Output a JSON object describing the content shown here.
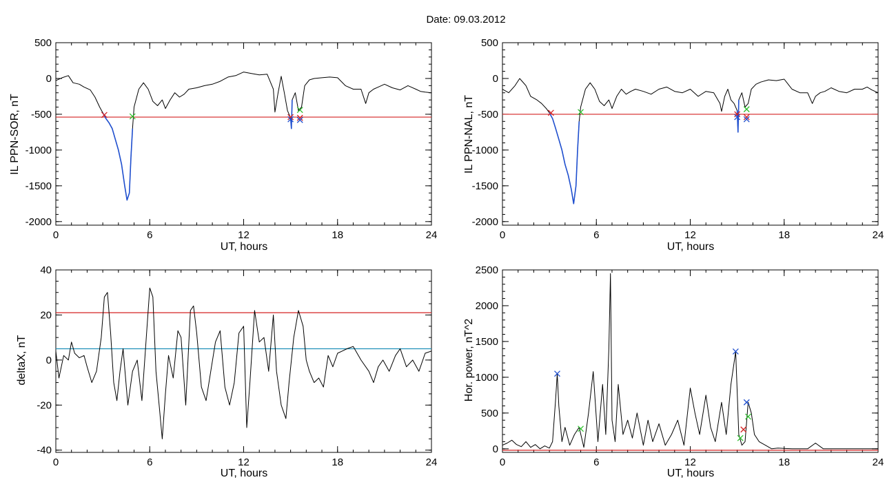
{
  "figure": {
    "title": "Date:  09.03.2012"
  },
  "chart_data": [
    {
      "id": "il_sor",
      "type": "line",
      "xlabel": "UT, hours",
      "ylabel": "IL PPN-SOR, nT",
      "xlim": [
        0,
        24
      ],
      "ylim": [
        -2050,
        500
      ],
      "xticks": [
        0,
        6,
        12,
        18,
        24
      ],
      "yticks": [
        500,
        0,
        -500,
        -1000,
        -1500,
        -2000
      ],
      "x_minor": 1,
      "y_minor": 100,
      "series": [
        {
          "color": "#000000",
          "x": [
            0,
            0.4,
            0.8,
            1.1,
            1.5,
            1.8,
            2.2,
            2.5,
            2.8,
            3.0,
            3.2,
            3.4,
            3.6,
            3.8,
            4.0,
            4.2,
            4.4,
            4.55,
            4.7,
            4.8,
            4.9,
            5.0,
            5.3,
            5.6,
            5.9,
            6.2,
            6.5,
            6.8,
            7.0,
            7.3,
            7.6,
            7.9,
            8.2,
            8.5,
            9.0,
            9.5,
            10.0,
            10.5,
            11.0,
            11.5,
            12.0,
            12.5,
            13.0,
            13.5,
            13.9,
            14.0,
            14.2,
            14.4,
            14.6,
            14.8,
            15.0,
            15.05,
            15.1,
            15.3,
            15.5,
            15.7,
            15.9,
            16.2,
            16.5,
            17.0,
            17.5,
            18.0,
            18.5,
            19.0,
            19.5,
            19.8,
            20.0,
            20.3,
            20.6,
            21.0,
            21.5,
            22.0,
            22.5,
            23.0,
            23.3,
            23.6,
            24.0
          ],
          "values": [
            -30,
            10,
            40,
            -60,
            -80,
            -120,
            -160,
            -260,
            -400,
            -480,
            -560,
            -620,
            -700,
            -850,
            -1000,
            -1200,
            -1500,
            -1700,
            -1600,
            -1100,
            -700,
            -400,
            -150,
            -60,
            -150,
            -320,
            -380,
            -300,
            -420,
            -300,
            -200,
            -260,
            -220,
            -150,
            -130,
            -100,
            -80,
            -40,
            20,
            40,
            90,
            70,
            50,
            60,
            -150,
            -470,
            -200,
            30,
            -200,
            -450,
            -550,
            -700,
            -300,
            -200,
            -450,
            -400,
            -100,
            -20,
            0,
            10,
            20,
            10,
            -100,
            -150,
            -150,
            -350,
            -200,
            -150,
            -120,
            -80,
            -130,
            -160,
            -100,
            -150,
            -180,
            -190,
            -200
          ]
        },
        {
          "color": "#1f4fcf",
          "x": [
            3.0,
            3.2,
            3.4,
            3.6,
            3.8,
            4.0,
            4.2,
            4.4,
            4.55,
            4.7,
            4.8,
            4.9
          ],
          "values": [
            -480,
            -560,
            -620,
            -700,
            -850,
            -1000,
            -1200,
            -1500,
            -1700,
            -1600,
            -1100,
            -700
          ]
        },
        {
          "color": "#1f4fcf",
          "x": [
            15.0,
            15.05,
            15.1
          ],
          "values": [
            -550,
            -700,
            -300
          ]
        }
      ],
      "hlines": [
        {
          "y": -540,
          "color": "#d42020"
        }
      ],
      "markers": [
        {
          "x": 3.1,
          "y": -510,
          "color": "#d42020"
        },
        {
          "x": 4.9,
          "y": -530,
          "color": "#2cc02c"
        },
        {
          "x": 15.0,
          "y": -540,
          "color": "#d42020"
        },
        {
          "x": 15.0,
          "y": -570,
          "color": "#1f4fcf"
        },
        {
          "x": 15.6,
          "y": -440,
          "color": "#2cc02c"
        },
        {
          "x": 15.6,
          "y": -550,
          "color": "#d42020"
        },
        {
          "x": 15.6,
          "y": -580,
          "color": "#1f4fcf"
        }
      ]
    },
    {
      "id": "il_nal",
      "type": "line",
      "xlabel": "UT, hours",
      "ylabel": "IL PPN-NAL, nT",
      "xlim": [
        0,
        24
      ],
      "ylim": [
        -2050,
        500
      ],
      "xticks": [
        0,
        6,
        12,
        18,
        24
      ],
      "yticks": [
        500,
        0,
        -500,
        -1000,
        -1500,
        -2000
      ],
      "x_minor": 1,
      "y_minor": 100,
      "series": [
        {
          "color": "#000000",
          "x": [
            0,
            0.4,
            0.8,
            1.1,
            1.5,
            1.8,
            2.2,
            2.5,
            2.8,
            3.0,
            3.2,
            3.4,
            3.6,
            3.8,
            4.0,
            4.2,
            4.4,
            4.55,
            4.7,
            4.8,
            4.9,
            5.0,
            5.3,
            5.6,
            5.9,
            6.2,
            6.5,
            6.8,
            7.0,
            7.3,
            7.6,
            7.9,
            8.2,
            8.5,
            9.0,
            9.5,
            10.0,
            10.5,
            11.0,
            11.5,
            12.0,
            12.5,
            13.0,
            13.5,
            13.9,
            14.0,
            14.2,
            14.4,
            14.6,
            14.8,
            15.0,
            15.05,
            15.1,
            15.3,
            15.5,
            15.7,
            15.9,
            16.2,
            16.5,
            17.0,
            17.5,
            18.0,
            18.5,
            19.0,
            19.5,
            19.8,
            20.0,
            20.3,
            20.6,
            21.0,
            21.5,
            22.0,
            22.5,
            23.0,
            23.3,
            23.6,
            24.0
          ],
          "values": [
            -150,
            -200,
            -100,
            0,
            -100,
            -250,
            -300,
            -350,
            -420,
            -480,
            -560,
            -700,
            -850,
            -1000,
            -1200,
            -1350,
            -1550,
            -1750,
            -1500,
            -1000,
            -600,
            -400,
            -150,
            -60,
            -150,
            -320,
            -380,
            -300,
            -420,
            -250,
            -150,
            -220,
            -180,
            -150,
            -180,
            -220,
            -150,
            -120,
            -180,
            -200,
            -150,
            -250,
            -180,
            -200,
            -350,
            -460,
            -250,
            -150,
            -300,
            -350,
            -450,
            -750,
            -300,
            -200,
            -400,
            -350,
            -150,
            -80,
            -50,
            -20,
            -30,
            -10,
            -150,
            -200,
            -200,
            -350,
            -250,
            -200,
            -180,
            -130,
            -180,
            -200,
            -150,
            -150,
            -120,
            -160,
            -200
          ]
        },
        {
          "color": "#1f4fcf",
          "x": [
            3.0,
            3.2,
            3.4,
            3.6,
            3.8,
            4.0,
            4.2,
            4.4,
            4.55,
            4.7,
            4.8,
            4.9
          ],
          "values": [
            -480,
            -560,
            -700,
            -850,
            -1000,
            -1200,
            -1350,
            -1550,
            -1750,
            -1500,
            -1000,
            -600
          ]
        },
        {
          "color": "#1f4fcf",
          "x": [
            15.0,
            15.05,
            15.1
          ],
          "values": [
            -450,
            -750,
            -300
          ]
        }
      ],
      "hlines": [
        {
          "y": -500,
          "color": "#d42020"
        }
      ],
      "markers": [
        {
          "x": 3.1,
          "y": -480,
          "color": "#d42020"
        },
        {
          "x": 5.0,
          "y": -470,
          "color": "#2cc02c"
        },
        {
          "x": 15.0,
          "y": -500,
          "color": "#d42020"
        },
        {
          "x": 15.0,
          "y": -540,
          "color": "#1f4fcf"
        },
        {
          "x": 15.6,
          "y": -430,
          "color": "#2cc02c"
        },
        {
          "x": 15.6,
          "y": -540,
          "color": "#d42020"
        },
        {
          "x": 15.6,
          "y": -570,
          "color": "#1f4fcf"
        }
      ]
    },
    {
      "id": "deltax",
      "type": "line",
      "xlabel": "UT, hours",
      "ylabel": "deltaX, nT",
      "xlim": [
        0,
        24
      ],
      "ylim": [
        -41,
        40
      ],
      "xticks": [
        0,
        6,
        12,
        18,
        24
      ],
      "yticks": [
        40,
        20,
        0,
        -20,
        -40
      ],
      "x_minor": 1,
      "y_minor": 5,
      "series": [
        {
          "color": "#000000",
          "x": [
            0,
            0.2,
            0.5,
            0.8,
            1.0,
            1.2,
            1.5,
            1.8,
            2.0,
            2.3,
            2.6,
            2.9,
            3.1,
            3.3,
            3.5,
            3.7,
            3.9,
            4.1,
            4.3,
            4.6,
            4.9,
            5.2,
            5.5,
            5.8,
            6.0,
            6.2,
            6.4,
            6.6,
            6.8,
            7.0,
            7.2,
            7.5,
            7.8,
            8.0,
            8.3,
            8.6,
            8.8,
            9.0,
            9.3,
            9.6,
            9.9,
            10.2,
            10.5,
            10.8,
            11.1,
            11.4,
            11.7,
            12.0,
            12.2,
            12.4,
            12.7,
            13.0,
            13.3,
            13.6,
            13.9,
            14.1,
            14.4,
            14.7,
            14.9,
            15.2,
            15.5,
            15.8,
            16.0,
            16.2,
            16.5,
            16.8,
            17.1,
            17.4,
            17.7,
            18.0,
            18.3,
            18.6,
            19.0,
            19.5,
            20.0,
            20.3,
            20.6,
            20.9,
            21.3,
            21.7,
            22.0,
            22.4,
            22.8,
            23.2,
            23.6,
            24.0
          ],
          "values": [
            4,
            -8,
            2,
            0,
            8,
            3,
            1,
            2,
            -3,
            -10,
            -5,
            10,
            28,
            30,
            12,
            -10,
            -18,
            -5,
            5,
            -20,
            -5,
            0,
            -18,
            12,
            32,
            28,
            -5,
            -20,
            -35,
            -15,
            2,
            -8,
            13,
            10,
            -20,
            22,
            24,
            12,
            -12,
            -18,
            -5,
            8,
            13,
            -12,
            -20,
            -10,
            12,
            15,
            -30,
            -10,
            22,
            8,
            10,
            -5,
            20,
            -5,
            -20,
            -26,
            -10,
            10,
            22,
            15,
            0,
            -5,
            -10,
            -8,
            -12,
            2,
            -3,
            3,
            4,
            5,
            6,
            0,
            -5,
            -10,
            -3,
            0,
            -5,
            2,
            5,
            -3,
            0,
            -5,
            3,
            4
          ]
        }
      ],
      "hlines": [
        {
          "y": 21,
          "color": "#d42020"
        },
        {
          "y": 5,
          "color": "#1f8fb8"
        }
      ],
      "markers": []
    },
    {
      "id": "hor_power",
      "type": "line",
      "xlabel": "UT, hours",
      "ylabel": "Hor. power, nT^2",
      "xlim": [
        0,
        24
      ],
      "ylim": [
        -50,
        2500
      ],
      "xticks": [
        0,
        6,
        12,
        18,
        24
      ],
      "yticks": [
        2500,
        2000,
        1500,
        1000,
        500,
        0
      ],
      "x_minor": 1,
      "y_minor": 100,
      "series": [
        {
          "color": "#000000",
          "x": [
            0,
            0.3,
            0.6,
            0.9,
            1.2,
            1.5,
            1.8,
            2.1,
            2.4,
            2.7,
            3.0,
            3.2,
            3.4,
            3.5,
            3.6,
            3.8,
            4.0,
            4.3,
            4.6,
            4.9,
            5.2,
            5.5,
            5.8,
            6.1,
            6.4,
            6.6,
            6.8,
            6.9,
            7.0,
            7.2,
            7.4,
            7.7,
            8.0,
            8.3,
            8.6,
            9.0,
            9.3,
            9.6,
            10.0,
            10.4,
            10.8,
            11.2,
            11.6,
            12.0,
            12.3,
            12.6,
            13.0,
            13.3,
            13.6,
            14.0,
            14.3,
            14.6,
            14.9,
            15.1,
            15.3,
            15.5,
            15.7,
            15.9,
            16.1,
            16.4,
            16.8,
            17.2,
            17.6,
            18.0,
            18.5,
            19.0,
            19.5,
            20.0,
            20.5,
            21.0,
            21.5,
            22.0,
            22.5,
            23.0,
            23.5,
            24.0
          ],
          "values": [
            50,
            80,
            120,
            60,
            30,
            100,
            20,
            60,
            0,
            40,
            10,
            100,
            700,
            1050,
            600,
            100,
            300,
            50,
            200,
            300,
            20,
            500,
            1080,
            100,
            900,
            200,
            1400,
            2450,
            400,
            100,
            900,
            200,
            400,
            150,
            500,
            50,
            400,
            100,
            350,
            50,
            200,
            400,
            50,
            850,
            500,
            200,
            750,
            300,
            100,
            650,
            200,
            900,
            1360,
            200,
            50,
            100,
            650,
            500,
            200,
            100,
            50,
            0,
            10,
            5,
            0,
            0,
            0,
            80,
            0,
            0,
            0,
            0,
            0,
            0,
            0,
            0
          ]
        }
      ],
      "hlines": [
        {
          "y": -20,
          "color": "#d42020"
        }
      ],
      "markers": [
        {
          "x": 3.5,
          "y": 1050,
          "color": "#1f4fcf"
        },
        {
          "x": 5.0,
          "y": 280,
          "color": "#2cc02c"
        },
        {
          "x": 14.9,
          "y": 1360,
          "color": "#1f4fcf"
        },
        {
          "x": 15.2,
          "y": 150,
          "color": "#2cc02c"
        },
        {
          "x": 15.4,
          "y": 270,
          "color": "#d42020"
        },
        {
          "x": 15.6,
          "y": 650,
          "color": "#1f4fcf"
        },
        {
          "x": 15.7,
          "y": 450,
          "color": "#2cc02c"
        }
      ]
    }
  ]
}
